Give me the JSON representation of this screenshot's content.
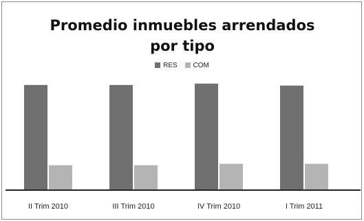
{
  "chart_data": {
    "type": "bar",
    "title": "Promedio inmuebles arrendados por tipo",
    "categories": [
      "II Trim 2010",
      "III Trim 2010",
      "IV Trim 2010",
      "I Trim 2011"
    ],
    "series": [
      {
        "name": "RES",
        "color": "#707070",
        "values": [
          156,
          156,
          158,
          155
        ]
      },
      {
        "name": "COM",
        "color": "#b4b4b4",
        "values": [
          37,
          37,
          39,
          39
        ]
      }
    ],
    "ylim": [
      0,
      170
    ],
    "grid": false,
    "legend_position": "top-center"
  }
}
